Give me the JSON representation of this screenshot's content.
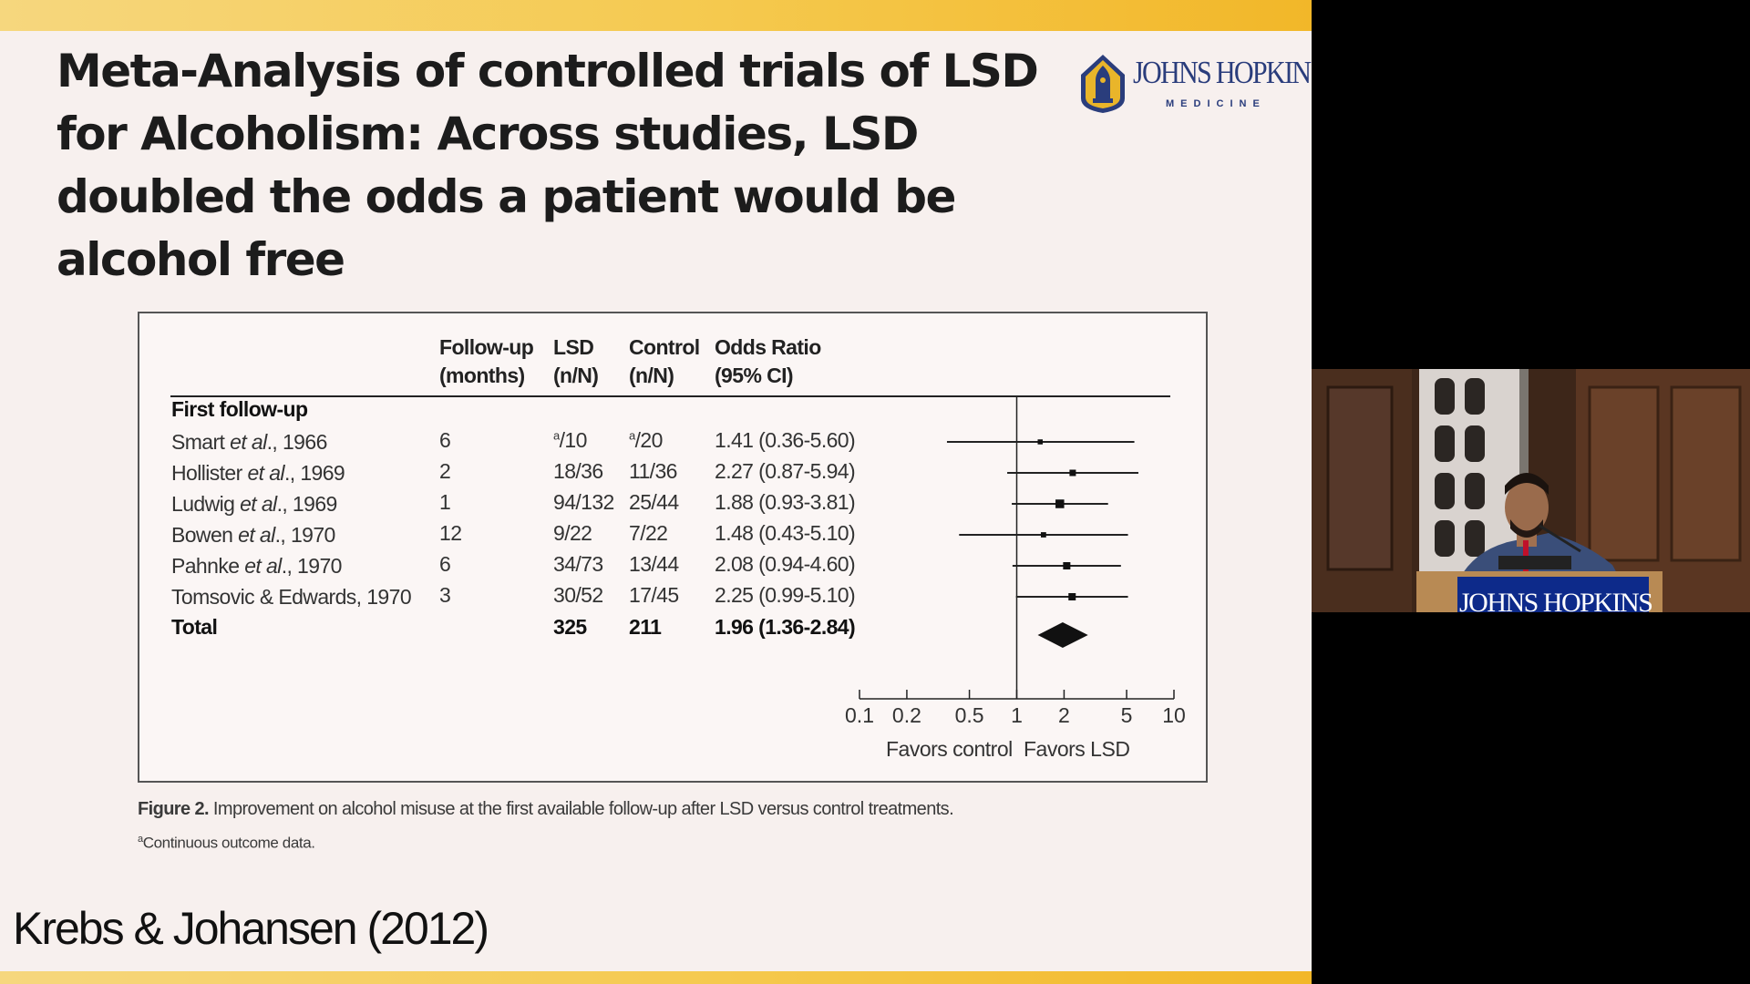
{
  "slide": {
    "title": "Meta-Analysis of controlled trials of LSD for Alcoholism: Across studies, LSD doubled the odds a patient would be alcohol free",
    "logo": {
      "name": "JOHNS HOPKINS",
      "sub": "MEDICINE"
    },
    "table": {
      "headers": {
        "followup": [
          "Follow-up",
          "(months)"
        ],
        "lsd": [
          "LSD",
          "(n/N)"
        ],
        "control": [
          "Control",
          "(n/N)"
        ],
        "or": [
          "Odds Ratio",
          "(95% CI)"
        ]
      },
      "section": "First follow-up",
      "rows": [
        {
          "study_pre": "Smart ",
          "study_em": "et al",
          "study_post": "., 1966",
          "followup": "6",
          "lsd_sup": "a",
          "lsd": "/10",
          "control_sup": "a",
          "control": "/20",
          "or_text": "1.41 (0.36-5.60)"
        },
        {
          "study_pre": "Hollister ",
          "study_em": "et al",
          "study_post": "., 1969",
          "followup": "2",
          "lsd_sup": "",
          "lsd": "18/36",
          "control_sup": "",
          "control": "11/36",
          "or_text": "2.27 (0.87-5.94)"
        },
        {
          "study_pre": "Ludwig ",
          "study_em": "et al",
          "study_post": "., 1969",
          "followup": "1",
          "lsd_sup": "",
          "lsd": "94/132",
          "control_sup": "",
          "control": "25/44",
          "or_text": "1.88 (0.93-3.81)"
        },
        {
          "study_pre": "Bowen ",
          "study_em": "et al",
          "study_post": "., 1970",
          "followup": "12",
          "lsd_sup": "",
          "lsd": "9/22",
          "control_sup": "",
          "control": "7/22",
          "or_text": "1.48 (0.43-5.10)"
        },
        {
          "study_pre": "Pahnke ",
          "study_em": "et al",
          "study_post": "., 1970",
          "followup": "6",
          "lsd_sup": "",
          "lsd": "34/73",
          "control_sup": "",
          "control": "13/44",
          "or_text": "2.08 (0.94-4.60)"
        },
        {
          "study_pre": "Tomsovic & Edwards, 1970",
          "study_em": "",
          "study_post": "",
          "followup": "3",
          "lsd_sup": "",
          "lsd": "30/52",
          "control_sup": "",
          "control": "17/45",
          "or_text": "2.25 (0.99-5.10)"
        }
      ],
      "total": {
        "label": "Total",
        "lsd": "325",
        "control": "211",
        "or_text": "1.96 (1.36-2.84)"
      }
    },
    "axis": {
      "ticks": [
        "0.1",
        "0.2",
        "0.5",
        "1",
        "2",
        "5",
        "10"
      ],
      "favors_left": "Favors control",
      "favors_right": "Favors LSD"
    },
    "caption": {
      "label": "Figure 2.",
      "text": "Improvement on alcohol misuse at the first available follow-up after LSD versus control treatments."
    },
    "footnote": {
      "sup": "a",
      "text": "Continuous outcome data."
    },
    "citation": "Krebs & Johansen (2012)"
  },
  "webcam": {
    "podium_label": "JOHNS HOPKINS"
  },
  "chart_data": {
    "type": "forest",
    "xscale": "log",
    "xlim": [
      0.1,
      10
    ],
    "reference_line": 1,
    "studies": [
      {
        "label": "Smart et al., 1966",
        "or": 1.41,
        "ci": [
          0.36,
          5.6
        ],
        "weight": 0.15
      },
      {
        "label": "Hollister et al., 1969",
        "or": 2.27,
        "ci": [
          0.87,
          5.94
        ],
        "weight": 0.3
      },
      {
        "label": "Ludwig et al., 1969",
        "or": 1.88,
        "ci": [
          0.93,
          3.81
        ],
        "weight": 0.55
      },
      {
        "label": "Bowen et al., 1970",
        "or": 1.48,
        "ci": [
          0.43,
          5.1
        ],
        "weight": 0.18
      },
      {
        "label": "Pahnke et al., 1970",
        "or": 2.08,
        "ci": [
          0.94,
          4.6
        ],
        "weight": 0.4
      },
      {
        "label": "Tomsovic & Edwards, 1970",
        "or": 2.25,
        "ci": [
          0.99,
          5.1
        ],
        "weight": 0.4
      }
    ],
    "total": {
      "label": "Total",
      "or": 1.96,
      "ci": [
        1.36,
        2.84
      ]
    }
  }
}
